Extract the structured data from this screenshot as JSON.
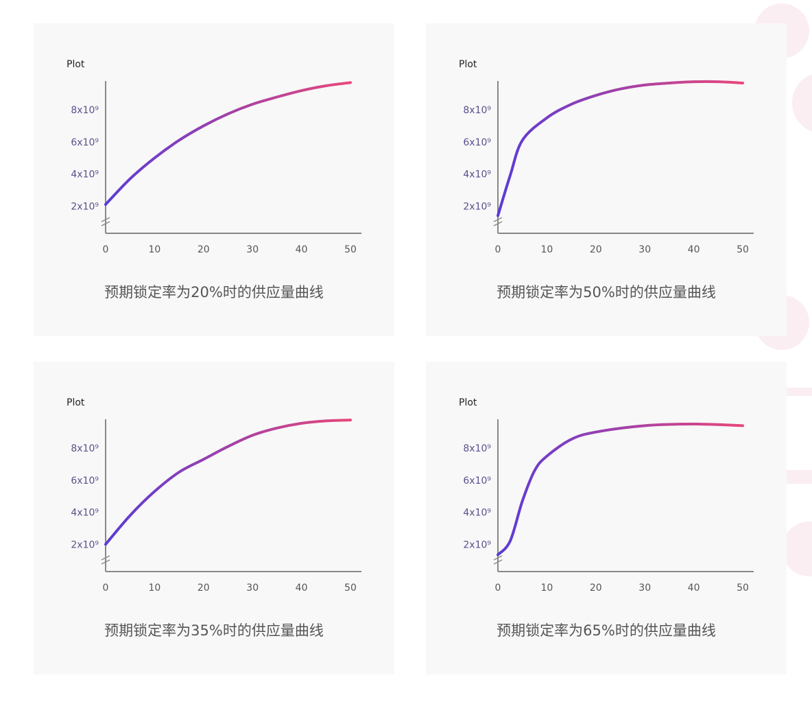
{
  "chart_data": [
    {
      "type": "line",
      "title": "Plot",
      "caption": "预期锁定率为20%时的供应量曲线",
      "x": [
        0,
        5,
        10,
        15,
        20,
        25,
        30,
        35,
        40,
        45,
        50
      ],
      "series": [
        {
          "values": [
            2100000000.0,
            3700000000.0,
            5000000000.0,
            6100000000.0,
            7000000000.0,
            7750000000.0,
            8350000000.0,
            8800000000.0,
            9200000000.0,
            9500000000.0,
            9700000000.0
          ],
          "color": [
            "#5a3bd6",
            "#e8487a"
          ]
        }
      ],
      "xlim": [
        0,
        50
      ],
      "xticks": [
        0,
        10,
        20,
        30,
        40,
        50
      ],
      "ylim": [
        300000000.0,
        9800000000.0
      ],
      "yticks": [
        {
          "value": 2000000000.0,
          "label": "2x10⁹"
        },
        {
          "value": 4000000000.0,
          "label": "4x10⁹"
        },
        {
          "value": 6000000000.0,
          "label": "6x10⁹"
        },
        {
          "value": 8000000000.0,
          "label": "8x10⁹"
        }
      ]
    },
    {
      "type": "line",
      "title": "Plot",
      "caption": "预期锁定率为50%时的供应量曲线",
      "x": [
        0,
        2.5,
        5,
        10,
        15,
        20,
        25,
        30,
        35,
        40,
        45,
        50
      ],
      "series": [
        {
          "values": [
            1400000000.0,
            3900000000.0,
            6100000000.0,
            7500000000.0,
            8350000000.0,
            8900000000.0,
            9300000000.0,
            9550000000.0,
            9670000000.0,
            9750000000.0,
            9750000000.0,
            9670000000.0
          ],
          "color": [
            "#5a3bd6",
            "#e8487a"
          ]
        }
      ],
      "xlim": [
        0,
        50
      ],
      "xticks": [
        0,
        10,
        20,
        30,
        40,
        50
      ],
      "ylim": [
        300000000.0,
        9800000000.0
      ],
      "yticks": [
        {
          "value": 2000000000.0,
          "label": "2x10⁹"
        },
        {
          "value": 4000000000.0,
          "label": "4x10⁹"
        },
        {
          "value": 6000000000.0,
          "label": "6x10⁹"
        },
        {
          "value": 8000000000.0,
          "label": "8x10⁹"
        }
      ]
    },
    {
      "type": "line",
      "title": "Plot",
      "caption": "预期锁定率为35%时的供应量曲线",
      "x": [
        0,
        5,
        10,
        15,
        20,
        25,
        30,
        35,
        40,
        45,
        50
      ],
      "series": [
        {
          "values": [
            2000000000.0,
            3800000000.0,
            5300000000.0,
            6500000000.0,
            7300000000.0,
            8100000000.0,
            8800000000.0,
            9250000000.0,
            9550000000.0,
            9700000000.0,
            9750000000.0
          ],
          "color": [
            "#5a3bd6",
            "#e8487a"
          ]
        }
      ],
      "xlim": [
        0,
        50
      ],
      "xticks": [
        0,
        10,
        20,
        30,
        40,
        50
      ],
      "ylim": [
        300000000.0,
        9800000000.0
      ],
      "yticks": [
        {
          "value": 2000000000.0,
          "label": "2x10⁹"
        },
        {
          "value": 4000000000.0,
          "label": "4x10⁹"
        },
        {
          "value": 6000000000.0,
          "label": "6x10⁹"
        },
        {
          "value": 8000000000.0,
          "label": "8x10⁹"
        }
      ]
    },
    {
      "type": "line",
      "title": "Plot",
      "caption": "预期锁定率为65%时的供应量曲线",
      "x": [
        0,
        2.5,
        5,
        7.5,
        10,
        15,
        20,
        30,
        40,
        50
      ],
      "series": [
        {
          "values": [
            1350000000.0,
            2200000000.0,
            4700000000.0,
            6600000000.0,
            7500000000.0,
            8550000000.0,
            9000000000.0,
            9400000000.0,
            9500000000.0,
            9400000000.0
          ],
          "color": [
            "#5a3bd6",
            "#e8487a"
          ]
        }
      ],
      "xlim": [
        0,
        50
      ],
      "xticks": [
        0,
        10,
        20,
        30,
        40,
        50
      ],
      "ylim": [
        300000000.0,
        9800000000.0
      ],
      "yticks": [
        {
          "value": 2000000000.0,
          "label": "2x10⁹"
        },
        {
          "value": 4000000000.0,
          "label": "4x10⁹"
        },
        {
          "value": 6000000000.0,
          "label": "6x10⁹"
        },
        {
          "value": 8000000000.0,
          "label": "8x10⁹"
        }
      ]
    }
  ]
}
